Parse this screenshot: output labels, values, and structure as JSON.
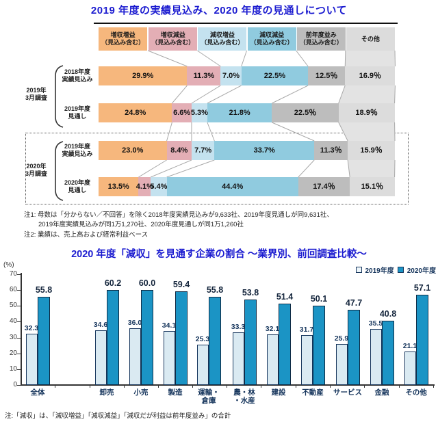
{
  "colors": {
    "title_blue": "#1b1bd0",
    "text_dark": "#1a1a1a",
    "label_navy": "#17365d",
    "segment": [
      "#f6b77d",
      "#e3aeb5",
      "#c4e2ef",
      "#90cbdf",
      "#bdbdbd",
      "#dcdcdc"
    ],
    "connector_line": "#a8a8a8",
    "connector_fill_last": "#e3e3e3",
    "bar_2019": "#daeaf2",
    "bar_2020": "#1b94c5",
    "bar_border": "#17365d",
    "axis": "#333333"
  },
  "chart_data": [
    {
      "type": "bar",
      "subtype": "stacked-horizontal-100pct",
      "title": "2019 年度の実績見込み、2020 年度の見通しについて",
      "unit": "%",
      "columns": [
        {
          "lines": [
            "増収増益",
            "（見込み含む）"
          ]
        },
        {
          "lines": [
            "増収減益",
            "（見込み含む）"
          ]
        },
        {
          "lines": [
            "減収増益",
            "（見込み含む）"
          ]
        },
        {
          "lines": [
            "減収減益",
            "（見込み含む）"
          ]
        },
        {
          "lines": [
            "前年度並み",
            "（見込み含む）"
          ]
        },
        {
          "lines": [
            "その他"
          ]
        }
      ],
      "groups": [
        {
          "survey_lines": [
            "2019年",
            "3月調査"
          ],
          "highlight_dashed": false,
          "rows": [
            {
              "label_lines": [
                "2018年度",
                "実績見込み"
              ],
              "values": [
                29.9,
                11.3,
                7.0,
                22.5,
                12.5,
                16.9
              ],
              "value_labels": [
                "29.9%",
                "11.3%",
                "7.0%",
                "22.5%",
                "12.5％",
                "16.9％"
              ]
            },
            {
              "label_lines": [
                "2019年度",
                "見通し"
              ],
              "values": [
                24.8,
                6.6,
                5.3,
                21.8,
                22.5,
                18.9
              ],
              "value_labels": [
                "24.8%",
                "6.6%",
                "5.3%",
                "21.8%",
                "22.5％",
                "18.9％"
              ]
            }
          ]
        },
        {
          "survey_lines": [
            "2020年",
            "3月調査"
          ],
          "highlight_dashed": true,
          "rows": [
            {
              "label_lines": [
                "2019年度",
                "実績見込み"
              ],
              "values": [
                23.0,
                8.4,
                7.7,
                33.7,
                11.3,
                15.9
              ],
              "value_labels": [
                "23.0%",
                "8.4%",
                "7.7%",
                "33.7%",
                "11.3％",
                "15.9％"
              ]
            },
            {
              "label_lines": [
                "2020年度",
                "見通し"
              ],
              "values": [
                13.5,
                4.1,
                5.4,
                44.4,
                17.4,
                15.1
              ],
              "value_labels": [
                "13.5%",
                "4.1%",
                "5.4%",
                "44.4%",
                "17.4％",
                "15.1％"
              ]
            }
          ]
        }
      ],
      "notes": [
        "注1: 母数は「分からない／不回答」を除く2018年度実績見込みが9,633社、2019年度見通しが同9,631社、",
        "2019年度実績見込みが同1万1,270社、2020年度見通しが同1万1,260社",
        "注2: 業績は、売上高および経常利益ベース"
      ]
    },
    {
      "type": "bar",
      "title": "2020 年度「減収」を見通す企業の割合 ～業界別、前回調査比較～",
      "ylabel": "(%)",
      "ylim": [
        0,
        70
      ],
      "yticks": [
        0,
        10,
        20,
        30,
        40,
        50,
        60,
        70
      ],
      "grid": false,
      "legend_position": "top-right",
      "categories": [
        "全体",
        "卸売",
        "小売",
        "製造",
        "運輸・倉庫",
        "農・林・水産",
        "建設",
        "不動産",
        "サービス",
        "金融",
        "その他"
      ],
      "category_lines": [
        [
          "全体"
        ],
        [
          "卸売"
        ],
        [
          "小売"
        ],
        [
          "製造"
        ],
        [
          "運輸・",
          "倉庫"
        ],
        [
          "農・林",
          "・水産"
        ],
        [
          "建設"
        ],
        [
          "不動産"
        ],
        [
          "サービス"
        ],
        [
          "金融"
        ],
        [
          "その他"
        ]
      ],
      "series": [
        {
          "name": "2019年度",
          "values": [
            32.3,
            34.6,
            36.0,
            34.1,
            25.3,
            33.3,
            32.1,
            31.7,
            25.9,
            35.5,
            21.1
          ],
          "value_labels": [
            "32.3",
            "34.6",
            "36.0",
            "34.1",
            "25.3",
            "33.3",
            "32.1",
            "31.7",
            "25.9",
            "35.5",
            "21.1"
          ]
        },
        {
          "name": "2020年度",
          "values": [
            55.8,
            60.2,
            60.0,
            59.4,
            55.8,
            53.8,
            51.4,
            50.1,
            47.7,
            40.8,
            57.1
          ],
          "value_labels": [
            "55.8",
            "60.2",
            "60.0",
            "59.4",
            "55.8",
            "53.8",
            "51.4",
            "50.1",
            "47.7",
            "40.8",
            "57.1"
          ]
        }
      ],
      "note": "注:「減収」は、「減収増益」「減収減益」「減収だが利益は前年度並み」の合計"
    }
  ]
}
